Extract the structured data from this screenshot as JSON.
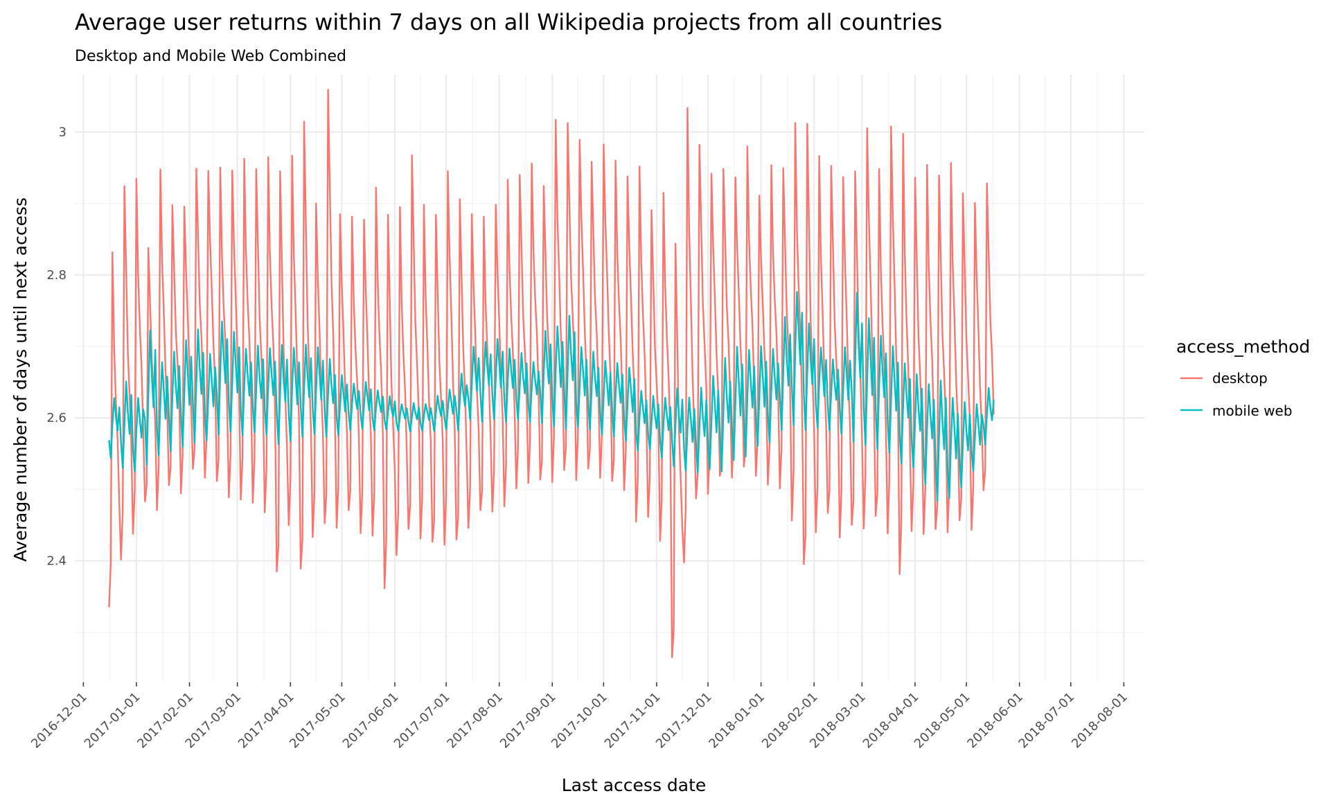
{
  "chart_data": {
    "type": "line",
    "title": "Average user returns within 7 days on all Wikipedia projects from all countries",
    "subtitle": "Desktop and Mobile Web Combined",
    "xlabel": "Last access date",
    "ylabel": "Average number of days until next access",
    "x_range": [
      "2016-11-26",
      "2018-08-13"
    ],
    "x_ticks": [
      "2016-12-01",
      "2017-01-01",
      "2017-02-01",
      "2017-03-01",
      "2017-04-01",
      "2017-05-01",
      "2017-06-01",
      "2017-07-01",
      "2017-08-01",
      "2017-09-01",
      "2017-10-01",
      "2017-11-01",
      "2017-12-01",
      "2018-01-01",
      "2018-02-01",
      "2018-03-01",
      "2018-04-01",
      "2018-05-01",
      "2018-06-01",
      "2018-07-01",
      "2018-08-01"
    ],
    "ylim": [
      2.23,
      3.08
    ],
    "y_ticks": [
      "2.4",
      "2.6",
      "2.8",
      "3"
    ],
    "y_tick_values": [
      2.4,
      2.6,
      2.8,
      3.0
    ],
    "grid": true,
    "legend": {
      "title": "access_method",
      "position": "right"
    },
    "series": [
      {
        "name": "desktop",
        "color": "#F8766D",
        "x_start": "2016-12-16",
        "period_days": 7,
        "weekly_peak": [
          2.85,
          2.96,
          2.95,
          2.86,
          2.96,
          2.92,
          2.93,
          2.97,
          2.98,
          2.97,
          2.98,
          2.98,
          2.98,
          2.98,
          2.98,
          2.98,
          3.05,
          2.94,
          3.09,
          2.92,
          2.9,
          2.91,
          2.94,
          2.92,
          2.91,
          3.0,
          2.91,
          2.91,
          2.99,
          2.93,
          2.92,
          2.9,
          2.93,
          2.95,
          2.97,
          2.97,
          2.95,
          3.03,
          3.04,
          3.03,
          2.98,
          3.02,
          2.98,
          2.97,
          2.97,
          2.92,
          2.93,
          2.88,
          3.05,
          3.01,
          2.98,
          2.97,
          2.97,
          3.0,
          2.94,
          2.97,
          2.98,
          3.03,
          3.05,
          2.98,
          2.98,
          2.98,
          2.97,
          3.05,
          2.97,
          3.05,
          3.02,
          2.97,
          2.97,
          2.97,
          2.97,
          2.94,
          2.94,
          2.95
        ],
        "weekly_trough": [
          2.35,
          2.4,
          2.45,
          2.48,
          2.48,
          2.5,
          2.5,
          2.52,
          2.52,
          2.5,
          2.49,
          2.5,
          2.48,
          2.48,
          2.38,
          2.46,
          2.38,
          2.44,
          2.44,
          2.45,
          2.46,
          2.44,
          2.45,
          2.36,
          2.42,
          2.44,
          2.44,
          2.42,
          2.43,
          2.42,
          2.45,
          2.46,
          2.47,
          2.49,
          2.5,
          2.52,
          2.51,
          2.52,
          2.52,
          2.52,
          2.52,
          2.52,
          2.5,
          2.5,
          2.47,
          2.46,
          2.44,
          2.26,
          2.41,
          2.48,
          2.5,
          2.51,
          2.52,
          2.52,
          2.52,
          2.52,
          2.5,
          2.47,
          2.39,
          2.45,
          2.46,
          2.44,
          2.44,
          2.45,
          2.45,
          2.44,
          2.4,
          2.44,
          2.45,
          2.44,
          2.45,
          2.45,
          2.45,
          2.49
        ]
      },
      {
        "name": "mobile web",
        "color": "#00BFC4",
        "x_start": "2016-12-16",
        "period_days": 7,
        "weekly_peak": [
          2.63,
          2.65,
          2.63,
          2.72,
          2.68,
          2.69,
          2.71,
          2.72,
          2.69,
          2.74,
          2.72,
          2.7,
          2.7,
          2.7,
          2.7,
          2.7,
          2.7,
          2.7,
          2.68,
          2.66,
          2.65,
          2.65,
          2.64,
          2.63,
          2.62,
          2.62,
          2.62,
          2.63,
          2.64,
          2.66,
          2.7,
          2.71,
          2.71,
          2.7,
          2.69,
          2.68,
          2.72,
          2.73,
          2.74,
          2.7,
          2.69,
          2.68,
          2.68,
          2.67,
          2.64,
          2.63,
          2.63,
          2.64,
          2.63,
          2.64,
          2.66,
          2.68,
          2.7,
          2.7,
          2.7,
          2.7,
          2.74,
          2.78,
          2.73,
          2.7,
          2.68,
          2.7,
          2.77,
          2.74,
          2.72,
          2.7,
          2.68,
          2.66,
          2.65,
          2.65,
          2.63,
          2.62,
          2.62,
          2.64
        ],
        "weekly_trough": [
          2.54,
          2.52,
          2.52,
          2.53,
          2.54,
          2.55,
          2.55,
          2.56,
          2.56,
          2.57,
          2.57,
          2.57,
          2.57,
          2.57,
          2.56,
          2.56,
          2.57,
          2.57,
          2.57,
          2.57,
          2.58,
          2.58,
          2.58,
          2.58,
          2.58,
          2.58,
          2.58,
          2.58,
          2.58,
          2.58,
          2.59,
          2.59,
          2.59,
          2.59,
          2.59,
          2.59,
          2.59,
          2.58,
          2.58,
          2.58,
          2.58,
          2.57,
          2.57,
          2.56,
          2.55,
          2.55,
          2.54,
          2.53,
          2.52,
          2.52,
          2.52,
          2.52,
          2.53,
          2.54,
          2.55,
          2.56,
          2.57,
          2.58,
          2.58,
          2.58,
          2.58,
          2.57,
          2.56,
          2.55,
          2.55,
          2.54,
          2.53,
          2.52,
          2.5,
          2.48,
          2.48,
          2.5,
          2.52,
          2.56
        ]
      }
    ]
  }
}
